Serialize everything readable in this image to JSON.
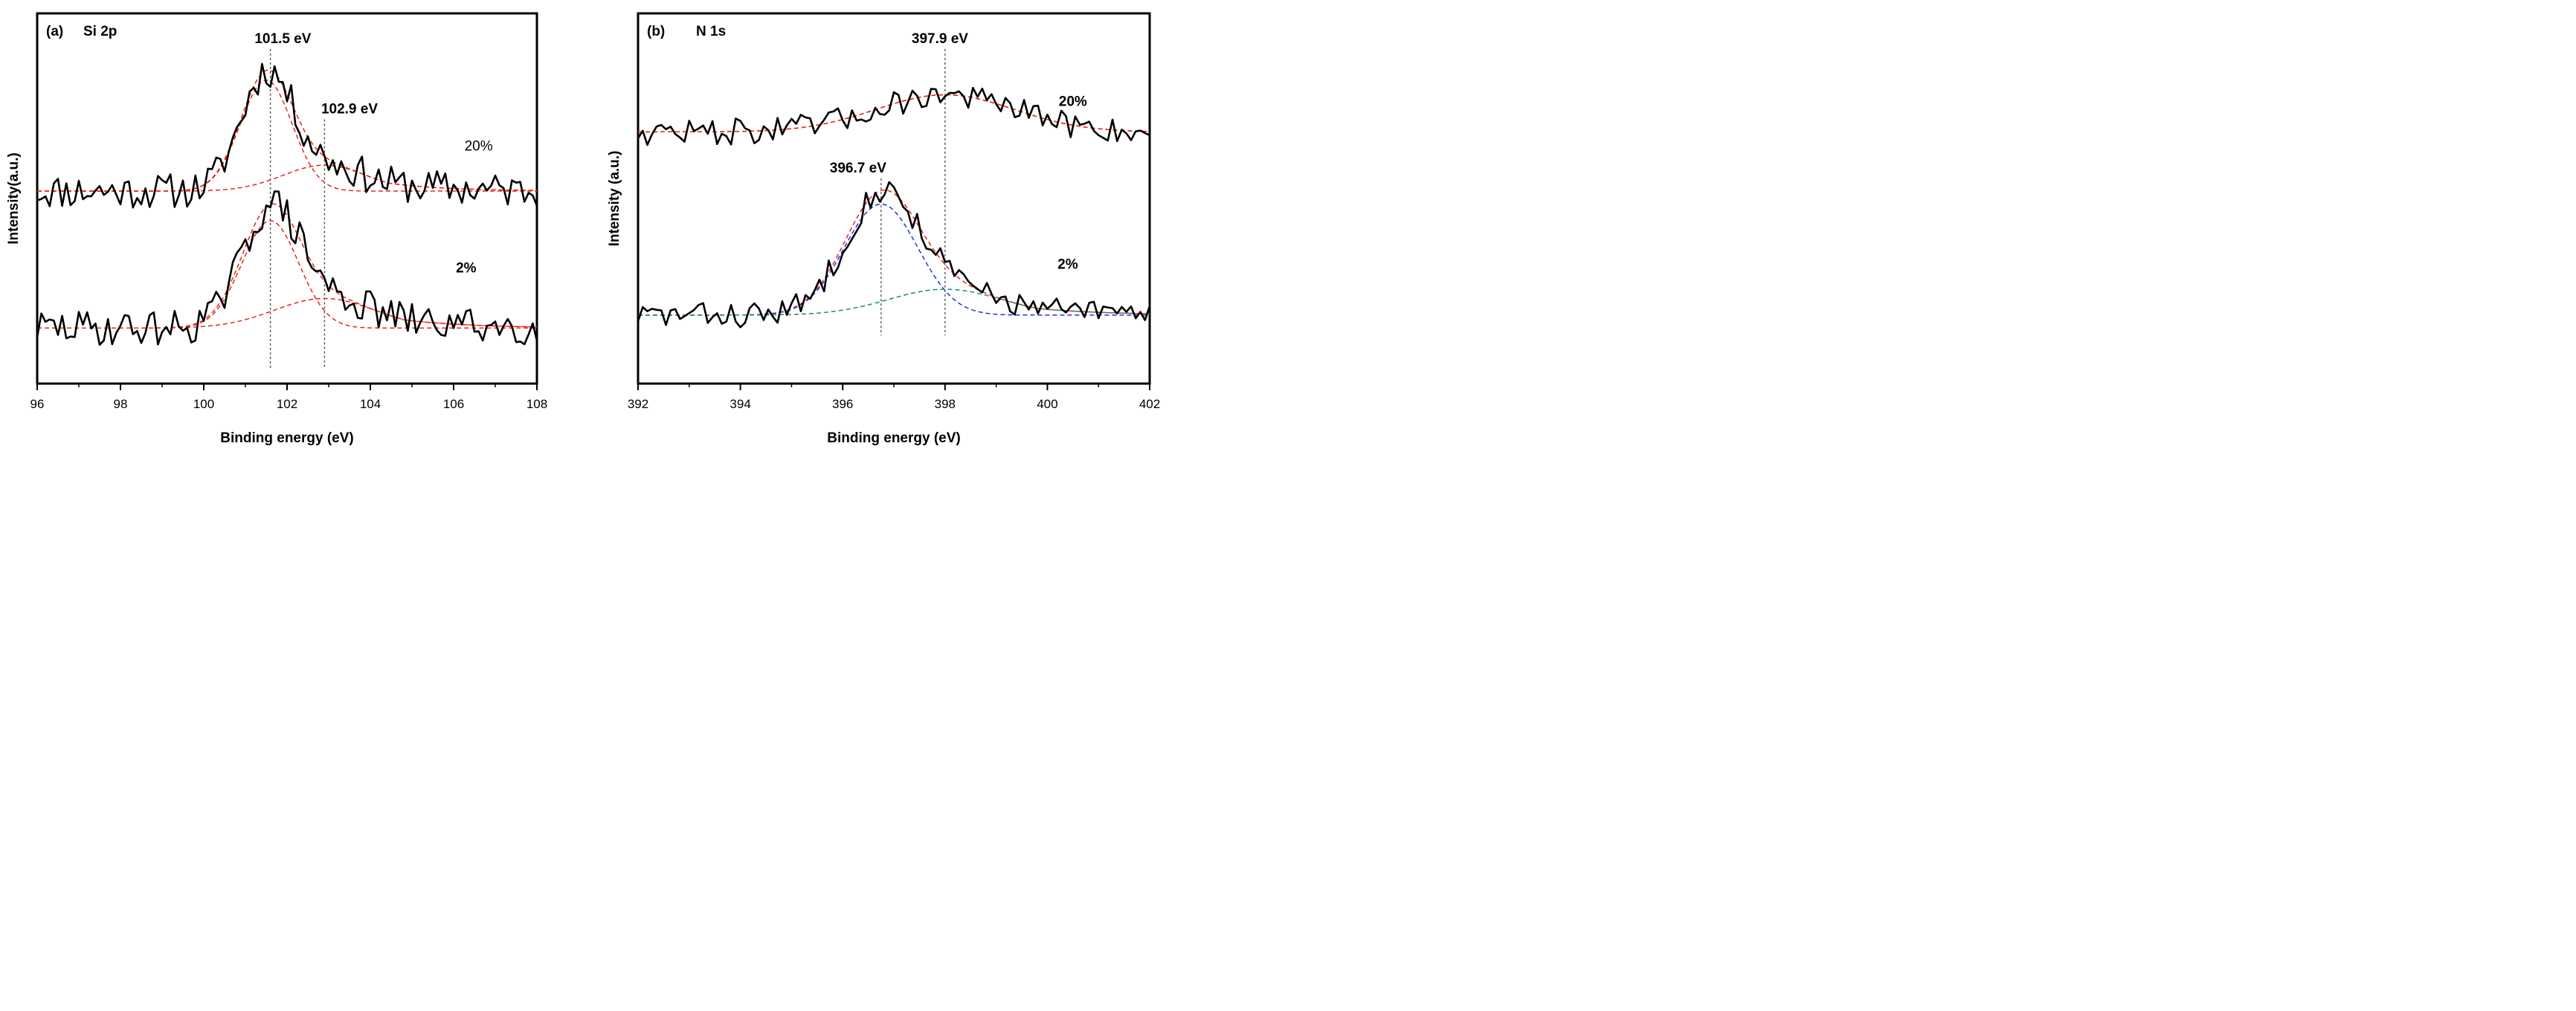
{
  "chart_data": [
    {
      "type": "line",
      "panel_label": "(a)",
      "title": "Si 2p",
      "xlabel": "Binding energy (eV)",
      "ylabel": "Intensity(a.u.)",
      "xlim": [
        96,
        108
      ],
      "ylim": [
        0,
        100
      ],
      "xticks": [
        "96",
        "98",
        "100",
        "102",
        "104",
        "106",
        "108"
      ],
      "peak_markers": [
        {
          "x": 101.6,
          "label": "101.5 eV",
          "label_x": 101.9,
          "label_y": 92
        },
        {
          "x": 102.9,
          "label": "102.9 eV",
          "label_x": 103.5,
          "label_y": 73
        }
      ],
      "series": [
        {
          "name": "20%",
          "label_bold": false,
          "label_x": 106.6,
          "label_y": 63,
          "raw_color": "#000000",
          "baseline": 52,
          "noise": 3.0,
          "seed": 11,
          "fits": [
            {
              "type": "sum",
              "color": "#e8271f"
            },
            {
              "type": "component",
              "center": 101.5,
              "height": 30,
              "width": 0.62,
              "color": "#e8271f"
            },
            {
              "type": "component",
              "center": 102.9,
              "height": 7,
              "width": 1.0,
              "tail": 1.4,
              "color": "#e8271f"
            }
          ]
        },
        {
          "name": "2%",
          "label_bold": true,
          "label_x": 106.3,
          "label_y": 30,
          "raw_color": "#000000",
          "baseline": 15,
          "noise": 3.0,
          "seed": 29,
          "fits": [
            {
              "type": "sum",
              "color": "#e8271f"
            },
            {
              "type": "component",
              "center": 101.6,
              "height": 29,
              "width": 0.68,
              "color": "#e8271f"
            },
            {
              "type": "component",
              "center": 102.9,
              "height": 8,
              "width": 1.2,
              "tail": 1.6,
              "color": "#e8271f"
            }
          ]
        }
      ]
    },
    {
      "type": "line",
      "panel_label": "(b)",
      "title": "N 1s",
      "xlabel": "Binding energy (eV)",
      "ylabel": "Intensity (a.u.)",
      "xlim": [
        392,
        402
      ],
      "ylim": [
        0,
        100
      ],
      "xticks": [
        "392",
        "394",
        "396",
        "398",
        "400",
        "402"
      ],
      "peak_markers": [
        {
          "x": 398.0,
          "label": "397.9 eV",
          "label_x": 397.9,
          "label_y": 92
        },
        {
          "x": 396.75,
          "label": "396.7 eV",
          "label_x": 396.3,
          "label_y": 57
        }
      ],
      "series": [
        {
          "name": "20%",
          "label_bold": true,
          "label_x": 400.5,
          "label_y": 75,
          "raw_color": "#000000",
          "baseline": 68,
          "noise": 2.2,
          "seed": 47,
          "fits": [
            {
              "type": "sum",
              "color": "#e8271f"
            },
            {
              "type": "component",
              "center": 398.0,
              "height": 10,
              "width": 1.35,
              "color": "#e8271f"
            }
          ]
        },
        {
          "name": "2%",
          "label_bold": true,
          "label_x": 400.4,
          "label_y": 31,
          "raw_color": "#000000",
          "baseline": 18.5,
          "noise": 2.2,
          "seed": 83,
          "fits": [
            {
              "type": "sum",
              "color": "#e8271f"
            },
            {
              "type": "component",
              "center": 396.75,
              "height": 30,
              "width": 0.72,
              "color": "#1c33e6"
            },
            {
              "type": "component",
              "center": 398.0,
              "height": 7,
              "width": 1.1,
              "tail": 1.4,
              "color": "#1e8a7a"
            }
          ]
        }
      ]
    }
  ]
}
